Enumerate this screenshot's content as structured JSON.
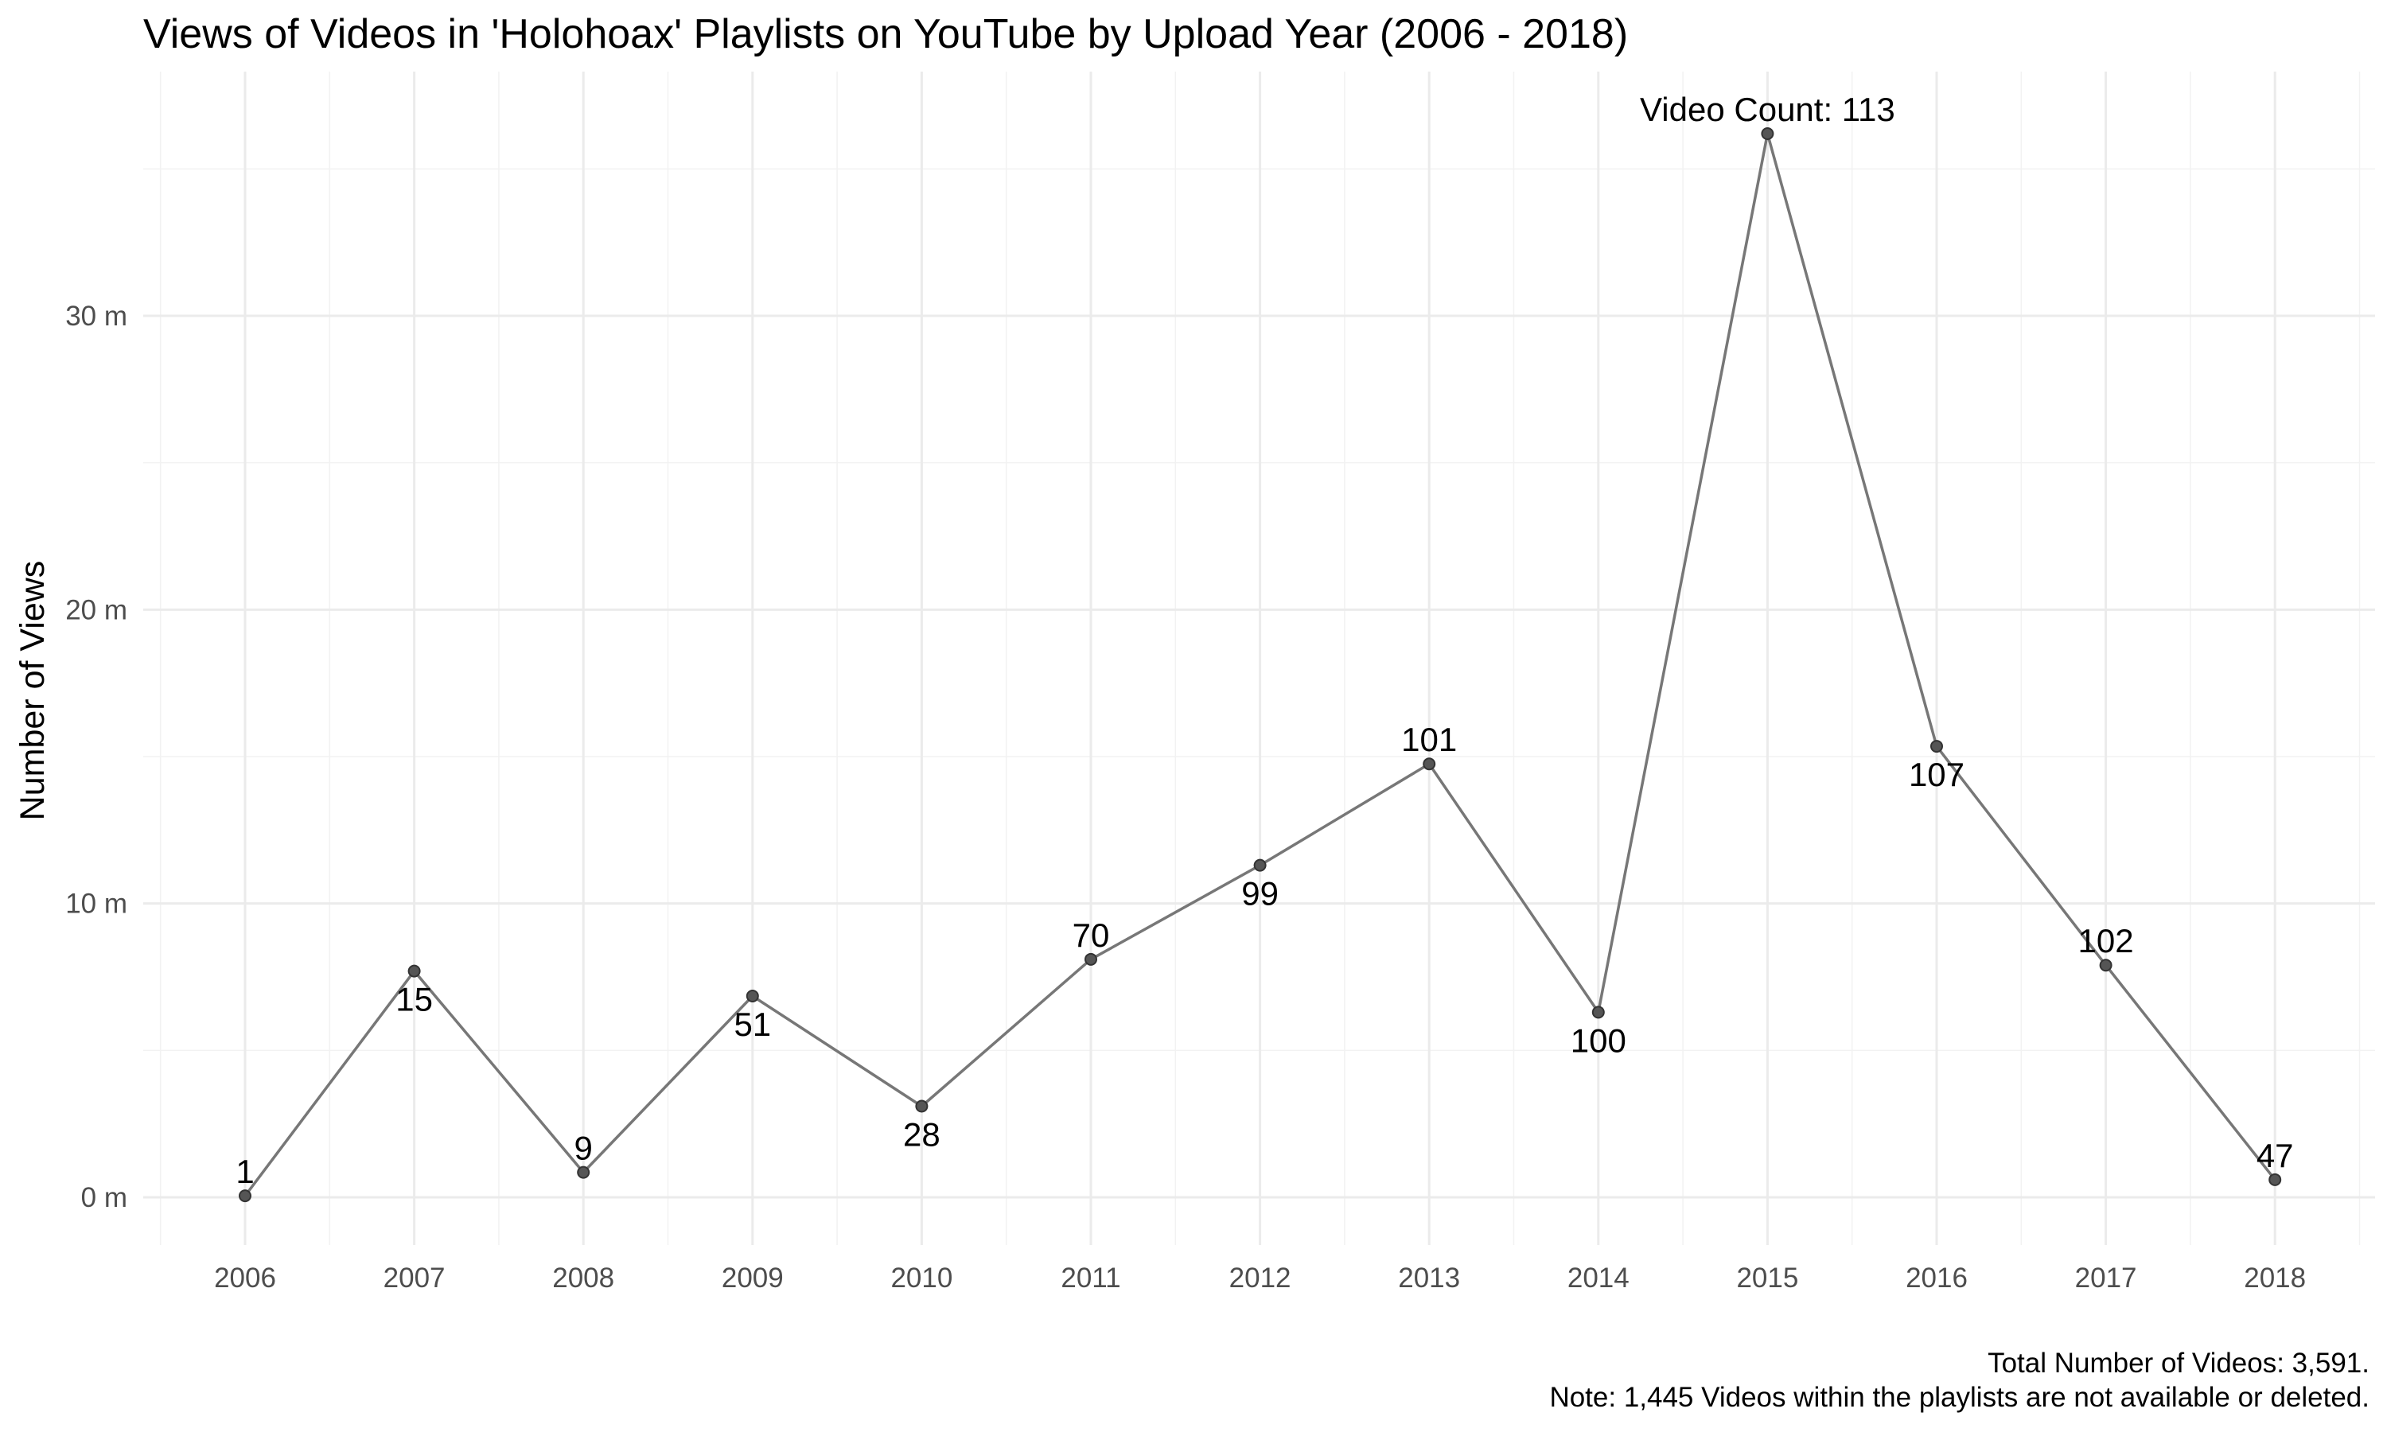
{
  "chart_data": {
    "type": "line",
    "title": "Views of Videos in 'Holohoax' Playlists on  YouTube by Upload Year (2006 - 2018)",
    "xlabel": "",
    "ylabel": "Number of Views",
    "x": [
      "2006",
      "2007",
      "2008",
      "2009",
      "2010",
      "2011",
      "2012",
      "2013",
      "2014",
      "2015",
      "2016",
      "2017",
      "2018"
    ],
    "values": [
      0.05,
      7.7,
      0.85,
      6.85,
      3.1,
      8.1,
      11.3,
      14.75,
      6.3,
      36.2,
      15.35,
      7.9,
      0.6
    ],
    "value_units": "millions of views",
    "point_labels": [
      "1",
      "15",
      "9",
      "51",
      "28",
      "70",
      "99",
      "101",
      "100",
      "Video Count: 113",
      "107",
      "102",
      "47"
    ],
    "point_label_positions": [
      "above",
      "below",
      "above",
      "below",
      "below",
      "above",
      "below",
      "above",
      "below",
      "above",
      "below",
      "above",
      "above"
    ],
    "y_ticks": [
      0,
      10,
      20,
      30
    ],
    "y_tick_labels": [
      "0 m",
      "10 m",
      "20 m",
      "30 m"
    ],
    "ylim": [
      -1.6,
      37.8
    ],
    "grid": true,
    "legend": "none",
    "captions": [
      "Total Number of Videos: 3,591.",
      "Note: 1,445 Videos within the playlists are not available or deleted."
    ],
    "colors": {
      "line": "#777777",
      "point": "#555555",
      "grid": "#ebebeb",
      "text": "#000000",
      "tick_text": "#4d4d4d"
    }
  }
}
